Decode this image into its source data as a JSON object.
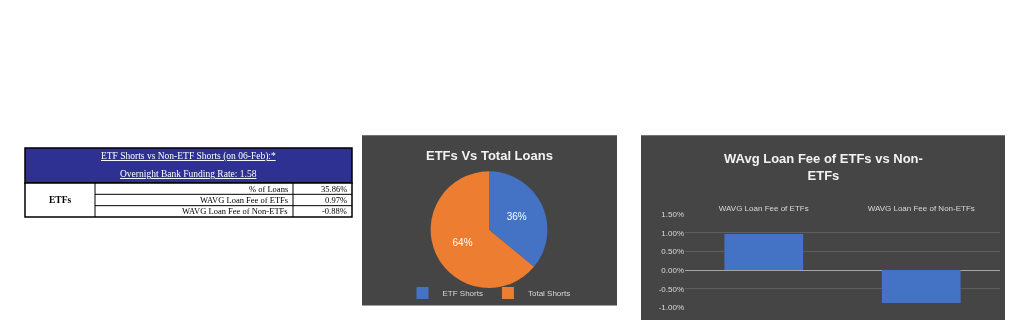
{
  "chart_data": [
    {
      "type": "other",
      "title": "ETF Shorts vs Non-ETF Shorts (on 06-Feb):*",
      "subtitle": "Overnight Bank Funding Rate: 1.58",
      "annotations": [
        "ETFs",
        "% of Loans",
        "35.86%",
        "WAVG Loan Fee of ETFs",
        "0.97%",
        "WAVG Loan Fee of Non-ETFs",
        "-0.88%"
      ]
    },
    {
      "type": "pie",
      "title": "ETFs Vs Total Loans",
      "categories": [
        "ETF Shorts",
        "Total Shorts"
      ],
      "values": [
        36,
        64
      ],
      "colors": [
        "#4472c4",
        "#ed7d31"
      ],
      "value_labels": [
        "36%",
        "64%"
      ],
      "legend": "bottom"
    },
    {
      "type": "bar",
      "title": "WAvg Loan Fee of ETFs vs Non-ETFs",
      "categories": [
        "WAVG Loan Fee of ETFs",
        "WAVG Loan Fee of Non-ETFs"
      ],
      "values": [
        0.97,
        -0.88
      ],
      "color": "#4472c4",
      "ylim": [
        -1.0,
        1.5
      ],
      "yticks": [
        {
          "value": -1.0,
          "label": "-1.00%"
        },
        {
          "value": -0.5,
          "label": "-0.50%"
        },
        {
          "value": 0,
          "label": "0.00%"
        },
        {
          "value": 0.5,
          "label": "0.50%"
        },
        {
          "value": 1.0,
          "label": "1.00%"
        },
        {
          "value": 1.5,
          "label": "1.50%"
        }
      ],
      "grid": "y"
    }
  ]
}
